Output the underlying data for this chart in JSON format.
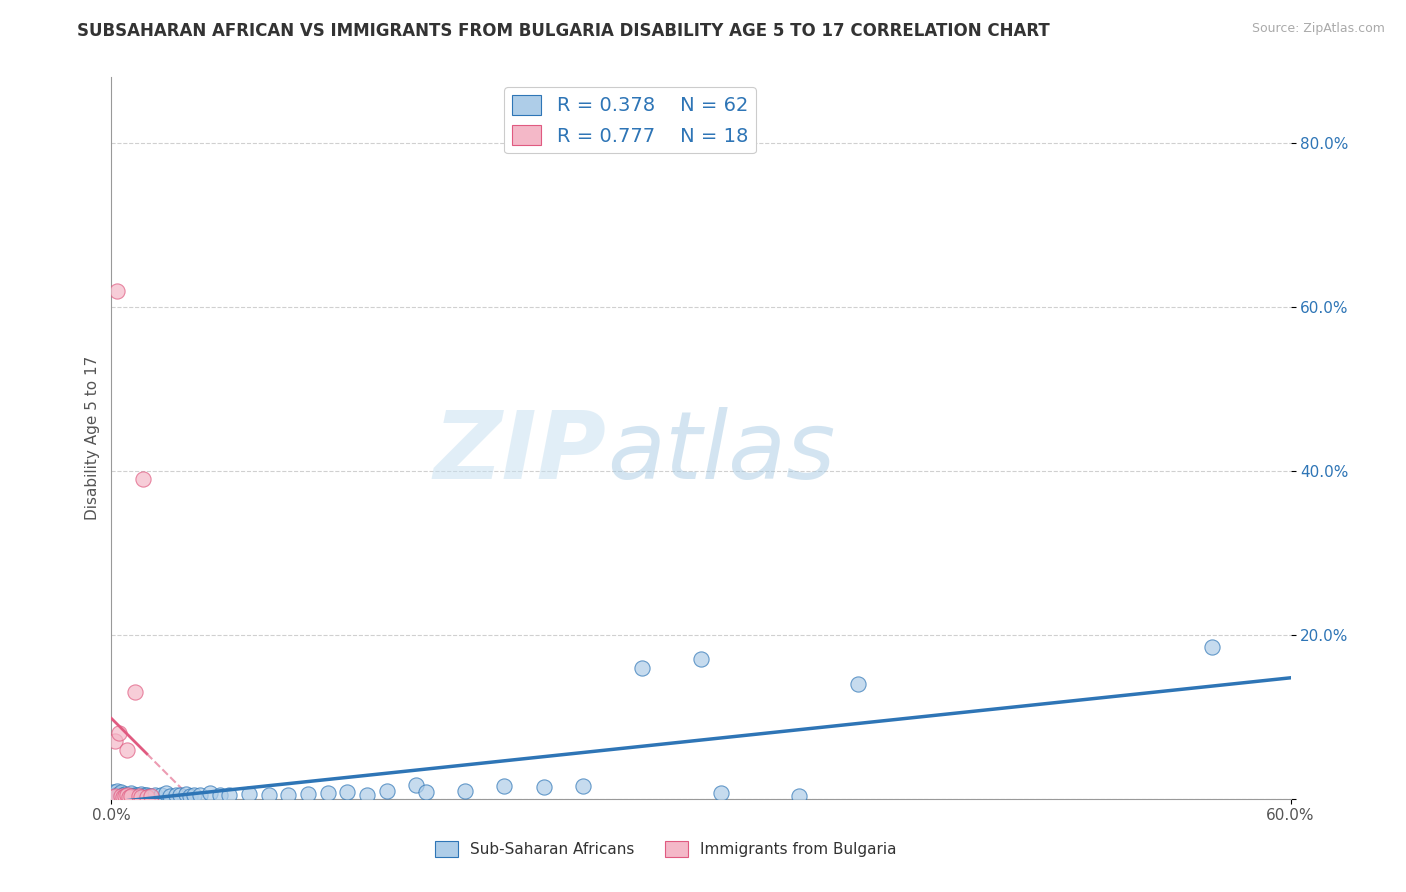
{
  "title": "SUBSAHARAN AFRICAN VS IMMIGRANTS FROM BULGARIA DISABILITY AGE 5 TO 17 CORRELATION CHART",
  "source": "Source: ZipAtlas.com",
  "xlabel_blue": "Sub-Saharan Africans",
  "xlabel_pink": "Immigrants from Bulgaria",
  "ylabel": "Disability Age 5 to 17",
  "xlim": [
    0.0,
    0.6
  ],
  "ylim": [
    0.0,
    0.88
  ],
  "xtick_positions": [
    0.0,
    0.6
  ],
  "xticklabels": [
    "0.0%",
    "60.0%"
  ],
  "yticks": [
    0.0,
    0.2,
    0.4,
    0.6,
    0.8
  ],
  "yticklabels": [
    "",
    "20.0%",
    "40.0%",
    "60.0%",
    "80.0%"
  ],
  "blue_R": 0.378,
  "blue_N": 62,
  "pink_R": 0.777,
  "pink_N": 18,
  "blue_color": "#aecde8",
  "pink_color": "#f4b8c8",
  "blue_line_color": "#2e75b6",
  "pink_line_color": "#e05a80",
  "blue_scatter": [
    [
      0.001,
      0.008
    ],
    [
      0.002,
      0.005
    ],
    [
      0.002,
      0.003
    ],
    [
      0.003,
      0.01
    ],
    [
      0.003,
      0.002
    ],
    [
      0.004,
      0.006
    ],
    [
      0.004,
      0.001
    ],
    [
      0.005,
      0.004
    ],
    [
      0.005,
      0.008
    ],
    [
      0.006,
      0.003
    ],
    [
      0.006,
      0.005
    ],
    [
      0.007,
      0.002
    ],
    [
      0.007,
      0.006
    ],
    [
      0.008,
      0.004
    ],
    [
      0.008,
      0.003
    ],
    [
      0.009,
      0.005
    ],
    [
      0.009,
      0.002
    ],
    [
      0.01,
      0.004
    ],
    [
      0.01,
      0.007
    ],
    [
      0.011,
      0.003
    ],
    [
      0.012,
      0.005
    ],
    [
      0.013,
      0.004
    ],
    [
      0.014,
      0.003
    ],
    [
      0.015,
      0.006
    ],
    [
      0.016,
      0.002
    ],
    [
      0.017,
      0.004
    ],
    [
      0.018,
      0.005
    ],
    [
      0.019,
      0.003
    ],
    [
      0.02,
      0.002
    ],
    [
      0.022,
      0.005
    ],
    [
      0.025,
      0.004
    ],
    [
      0.028,
      0.007
    ],
    [
      0.03,
      0.003
    ],
    [
      0.033,
      0.005
    ],
    [
      0.035,
      0.004
    ],
    [
      0.038,
      0.006
    ],
    [
      0.04,
      0.003
    ],
    [
      0.042,
      0.005
    ],
    [
      0.045,
      0.004
    ],
    [
      0.05,
      0.007
    ],
    [
      0.055,
      0.005
    ],
    [
      0.06,
      0.004
    ],
    [
      0.07,
      0.006
    ],
    [
      0.08,
      0.005
    ],
    [
      0.09,
      0.004
    ],
    [
      0.1,
      0.006
    ],
    [
      0.11,
      0.007
    ],
    [
      0.12,
      0.008
    ],
    [
      0.13,
      0.005
    ],
    [
      0.14,
      0.009
    ],
    [
      0.155,
      0.017
    ],
    [
      0.16,
      0.008
    ],
    [
      0.18,
      0.009
    ],
    [
      0.2,
      0.016
    ],
    [
      0.22,
      0.014
    ],
    [
      0.24,
      0.015
    ],
    [
      0.27,
      0.16
    ],
    [
      0.3,
      0.17
    ],
    [
      0.31,
      0.007
    ],
    [
      0.35,
      0.003
    ],
    [
      0.38,
      0.14
    ],
    [
      0.56,
      0.185
    ]
  ],
  "pink_scatter": [
    [
      0.001,
      0.002
    ],
    [
      0.002,
      0.003
    ],
    [
      0.002,
      0.07
    ],
    [
      0.003,
      0.62
    ],
    [
      0.004,
      0.08
    ],
    [
      0.005,
      0.003
    ],
    [
      0.006,
      0.002
    ],
    [
      0.007,
      0.003
    ],
    [
      0.008,
      0.06
    ],
    [
      0.008,
      0.004
    ],
    [
      0.009,
      0.002
    ],
    [
      0.01,
      0.003
    ],
    [
      0.012,
      0.13
    ],
    [
      0.014,
      0.003
    ],
    [
      0.015,
      0.002
    ],
    [
      0.016,
      0.39
    ],
    [
      0.018,
      0.002
    ],
    [
      0.02,
      0.003
    ]
  ],
  "watermark_zip": "ZIP",
  "watermark_atlas": "atlas",
  "background_color": "#ffffff",
  "grid_color": "#d0d0d0",
  "title_fontsize": 12,
  "axis_label_fontsize": 11,
  "tick_fontsize": 11,
  "legend_fontsize": 14
}
